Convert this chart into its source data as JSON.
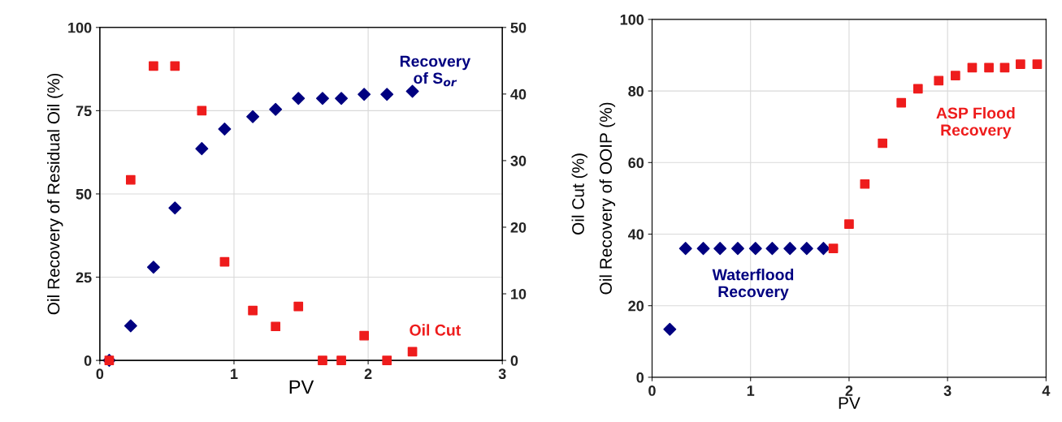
{
  "chart_data": [
    {
      "type": "scatter",
      "xlabel": "PV",
      "ylabel": "Oil Recovery of Residual Oil (%)",
      "y2label": "Oil Cut (%)",
      "xlim": [
        0,
        3
      ],
      "xticks": [
        0,
        1,
        2,
        3
      ],
      "ylim": [
        0,
        100
      ],
      "yticks": [
        0,
        25,
        50,
        75,
        100
      ],
      "y2lim": [
        0,
        50
      ],
      "y2ticks": [
        0,
        10,
        20,
        30,
        40,
        50
      ],
      "grid": true,
      "legend": false,
      "series": [
        {
          "name": "Recovery\nof S$_{or}$",
          "color": "#000080",
          "marker": "diamond",
          "x": [
            0.07,
            0.23,
            0.4,
            0.56,
            0.76,
            0.93,
            1.14,
            1.31,
            1.48,
            1.66,
            1.8,
            1.97,
            2.14,
            2.33
          ],
          "values": [
            0,
            10.4,
            28,
            45.8,
            63.6,
            69.5,
            73.2,
            75.4,
            78.7,
            78.7,
            78.7,
            79.9,
            79.9,
            80.8
          ]
        },
        {
          "name": "Oil Cut",
          "color": "#ee1c1c",
          "marker": "square",
          "axis": "y2",
          "x": [
            0.07,
            0.23,
            0.4,
            0.56,
            0.76,
            0.93,
            1.14,
            1.31,
            1.48,
            1.66,
            1.8,
            1.97,
            2.14,
            2.33
          ],
          "values": [
            0,
            27.1,
            44.2,
            44.2,
            37.5,
            14.8,
            7.5,
            5.1,
            8.1,
            0,
            0,
            3.7,
            0,
            1.3
          ]
        }
      ]
    },
    {
      "type": "scatter",
      "xlabel": "PV",
      "ylabel": "Oil Recovery of OOIP (%)",
      "xlim": [
        0,
        4
      ],
      "xticks": [
        0,
        1,
        2,
        3,
        4
      ],
      "ylim": [
        0,
        100
      ],
      "yticks": [
        0,
        20,
        40,
        60,
        80,
        100
      ],
      "grid": true,
      "legend": false,
      "series": [
        {
          "name": "Waterflood\nRecovery",
          "color": "#000080",
          "marker": "diamond",
          "x": [
            0.18,
            0.34,
            0.52,
            0.69,
            0.87,
            1.05,
            1.22,
            1.4,
            1.57,
            1.74
          ],
          "values": [
            13.4,
            36,
            36,
            36,
            36,
            36,
            36,
            36,
            36,
            36
          ]
        },
        {
          "name": "ASP Flood\nRecovery",
          "color": "#ee1c1c",
          "marker": "square",
          "x": [
            1.84,
            2.0,
            2.16,
            2.34,
            2.53,
            2.7,
            2.91,
            3.08,
            3.25,
            3.42,
            3.58,
            3.74,
            3.91
          ],
          "values": [
            36,
            42.8,
            54,
            65.4,
            76.7,
            80.6,
            82.9,
            84.3,
            86.5,
            86.5,
            86.5,
            87.5,
            87.5
          ]
        }
      ]
    }
  ]
}
